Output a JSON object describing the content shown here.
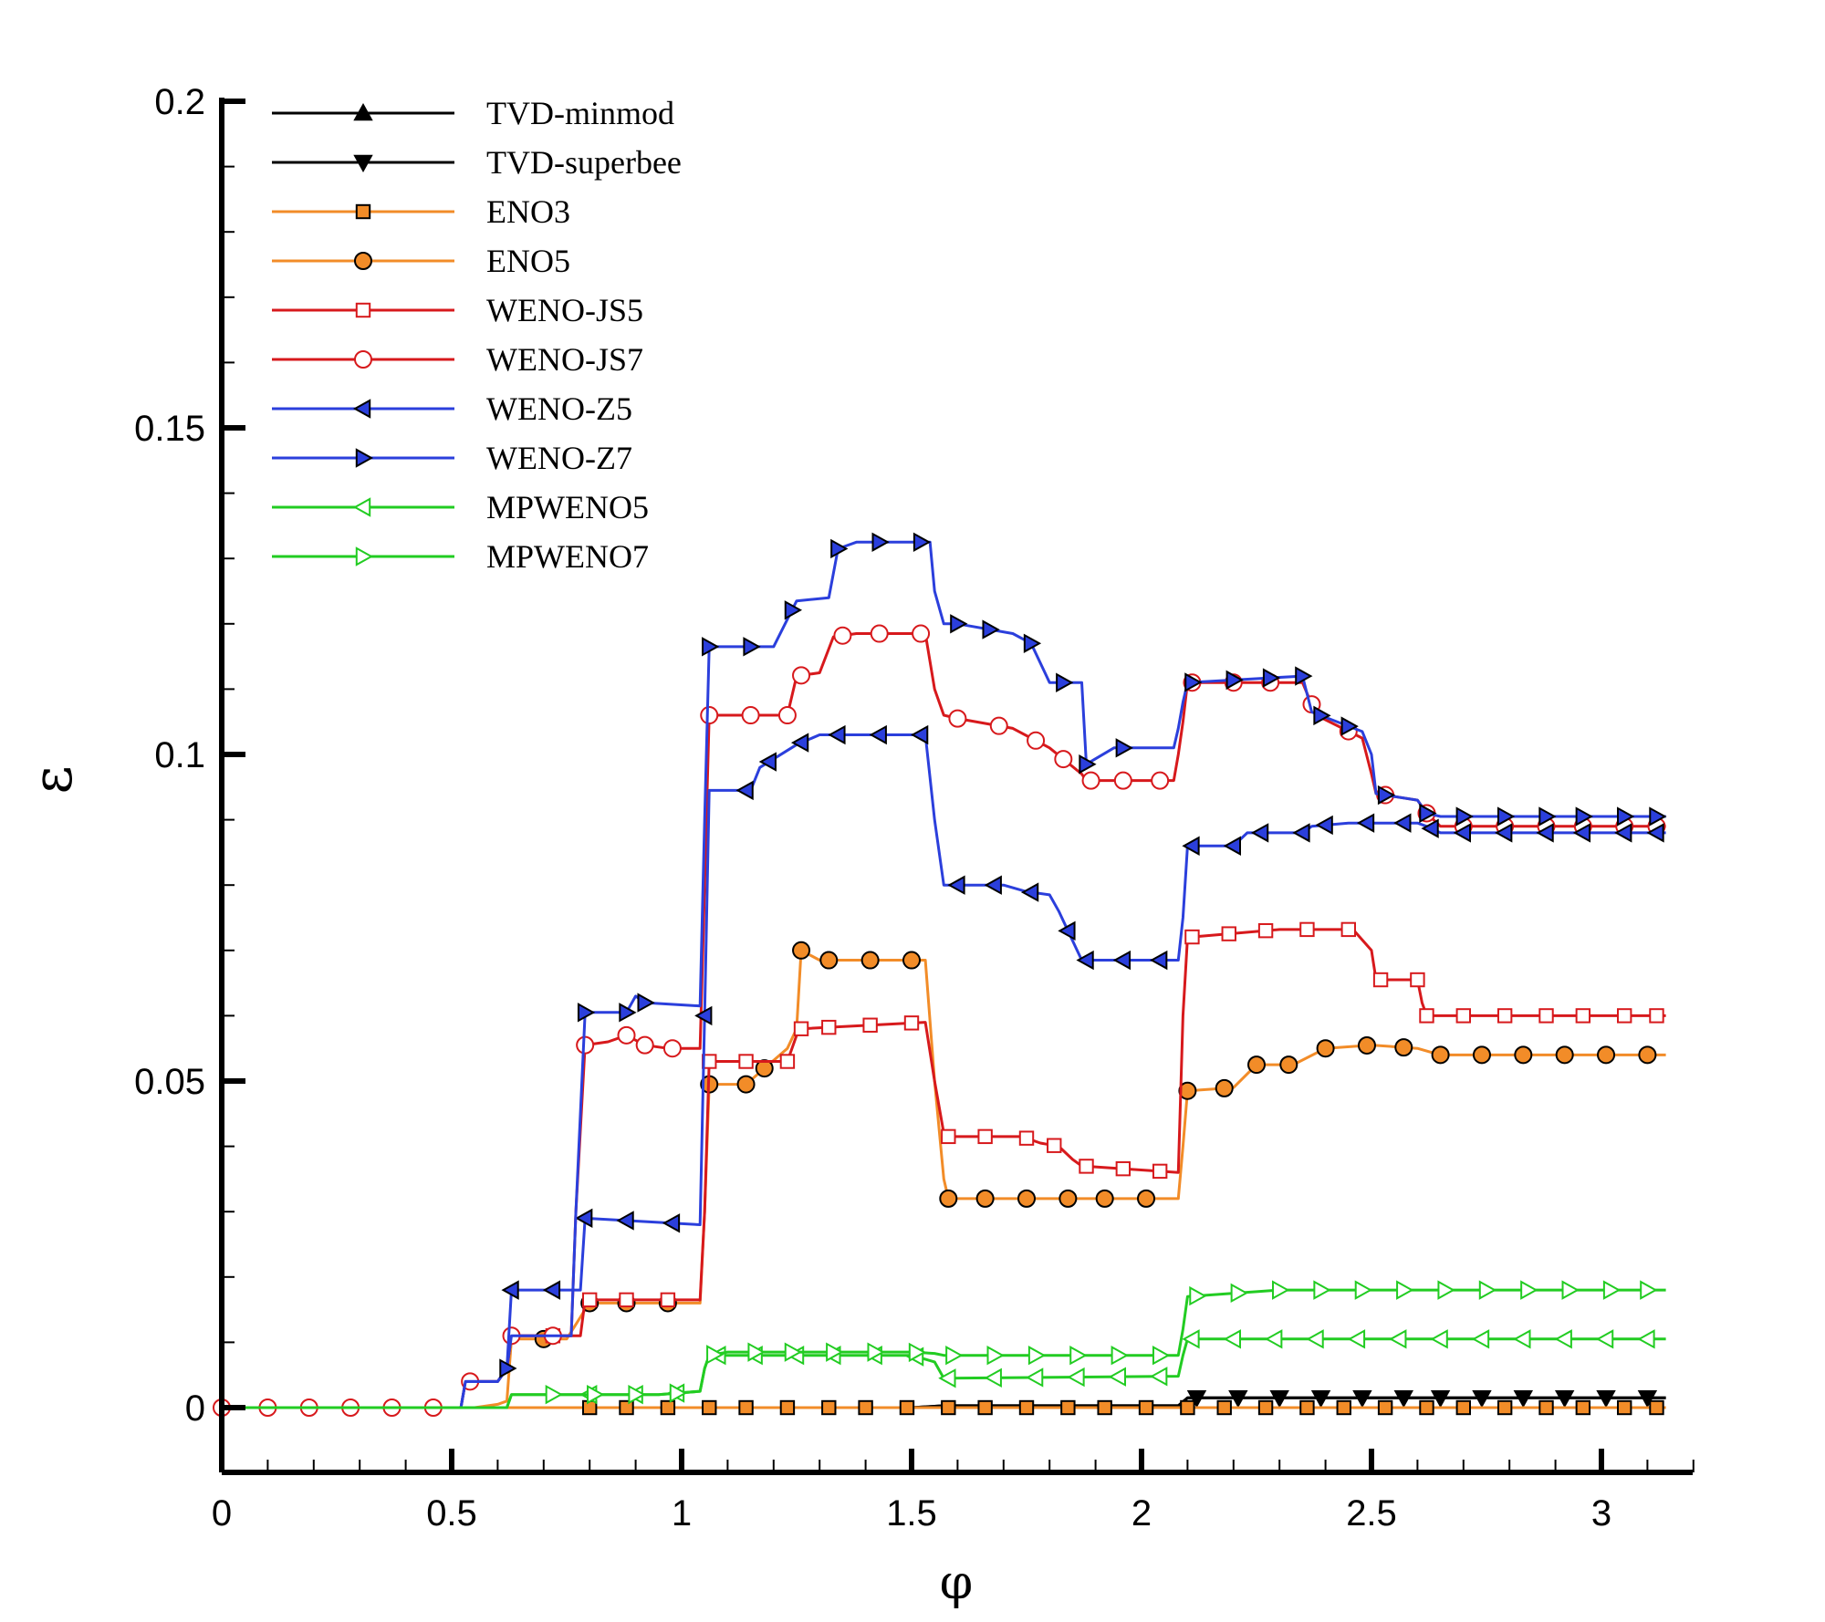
{
  "chart_data": {
    "type": "line",
    "title": "",
    "xlabel": "φ",
    "ylabel": "ε",
    "xlim": [
      0,
      3.2
    ],
    "ylim": [
      -0.01,
      0.2
    ],
    "xticks": [
      0,
      0.5,
      1,
      1.5,
      2,
      2.5,
      3
    ],
    "xtick_labels": [
      "0",
      "0.5",
      "1",
      "1.5",
      "2",
      "2.5",
      "3"
    ],
    "yticks": [
      0,
      0.05,
      0.1,
      0.15,
      0.2
    ],
    "ytick_labels": [
      "0",
      "0.05",
      "0.1",
      "0.15",
      "0.2"
    ],
    "grid": false,
    "legend_position": "top-left",
    "series": [
      {
        "name": "TVD-minmod",
        "color": "#000000",
        "marker": "triangle-up",
        "fill": "#000000",
        "x": [
          0,
          0.5,
          1.0,
          1.5,
          1.57,
          2.08,
          2.1,
          2.3,
          3.14
        ],
        "y": [
          0,
          0,
          0,
          0,
          0.0003,
          0.0003,
          0.0015,
          0.0015,
          0.0015
        ],
        "markers": []
      },
      {
        "name": "TVD-superbee",
        "color": "#000000",
        "marker": "triangle-down",
        "fill": "#000000",
        "x": [
          0,
          0.5,
          1.0,
          1.5,
          1.57,
          2.08,
          2.1,
          2.3,
          3.14
        ],
        "y": [
          0,
          0,
          0,
          0,
          0.0003,
          0.0003,
          0.0015,
          0.0015,
          0.0015
        ],
        "markers": [
          2.12,
          2.21,
          2.3,
          2.39,
          2.48,
          2.57,
          2.65,
          2.74,
          2.83,
          2.92,
          3.01,
          3.1
        ]
      },
      {
        "name": "ENO3",
        "color": "#f28c28",
        "marker": "square",
        "fill": "#f28c28",
        "x": [
          0,
          3.14
        ],
        "y": [
          0,
          0
        ],
        "markers": [
          0.8,
          0.88,
          0.97,
          1.06,
          1.14,
          1.23,
          1.32,
          1.4,
          1.49,
          1.58,
          1.66,
          1.75,
          1.84,
          1.92,
          2.01,
          2.1,
          2.18,
          2.27,
          2.36,
          2.44,
          2.53,
          2.62,
          2.7,
          2.79,
          2.88,
          2.96,
          3.05,
          3.12
        ]
      },
      {
        "name": "ENO5",
        "color": "#f28c28",
        "marker": "circle",
        "fill": "#f28c28",
        "x": [
          0,
          0.55,
          0.6,
          0.62,
          0.63,
          0.75,
          0.79,
          0.8,
          1.04,
          1.05,
          1.06,
          1.14,
          1.23,
          1.25,
          1.26,
          1.3,
          1.53,
          1.55,
          1.57,
          1.58,
          2.08,
          2.09,
          2.1,
          2.2,
          2.25,
          2.33,
          2.4,
          2.5,
          2.6,
          2.65,
          3.14
        ],
        "y": [
          0,
          0,
          0.0005,
          0.001,
          0.0105,
          0.0105,
          0.015,
          0.016,
          0.016,
          0.03,
          0.0495,
          0.0495,
          0.055,
          0.058,
          0.07,
          0.0685,
          0.0685,
          0.05,
          0.035,
          0.032,
          0.032,
          0.04,
          0.0485,
          0.049,
          0.0525,
          0.0525,
          0.055,
          0.0555,
          0.055,
          0.054,
          0.054
        ],
        "markers": [
          0.7,
          0.8,
          0.88,
          0.97,
          1.06,
          1.14,
          1.18,
          1.26,
          1.32,
          1.41,
          1.5,
          1.58,
          1.66,
          1.75,
          1.84,
          1.92,
          2.01,
          2.1,
          2.18,
          2.25,
          2.32,
          2.4,
          2.49,
          2.57,
          2.65,
          2.74,
          2.83,
          2.92,
          3.01,
          3.1
        ]
      },
      {
        "name": "WENO-JS5",
        "color": "#d7191c",
        "marker": "square",
        "fill": "#ffffff",
        "x": [
          0,
          0.52,
          0.53,
          0.6,
          0.62,
          0.63,
          0.78,
          0.79,
          1.04,
          1.05,
          1.06,
          1.23,
          1.25,
          1.26,
          1.53,
          1.55,
          1.57,
          1.58,
          1.74,
          1.78,
          1.82,
          1.85,
          1.87,
          2.08,
          2.09,
          2.1,
          2.3,
          2.46,
          2.5,
          2.51,
          2.6,
          2.61,
          2.62,
          3.14
        ],
        "y": [
          0,
          0,
          0.004,
          0.004,
          0.006,
          0.011,
          0.011,
          0.0165,
          0.0165,
          0.03,
          0.053,
          0.053,
          0.057,
          0.058,
          0.059,
          0.05,
          0.042,
          0.0415,
          0.0415,
          0.0405,
          0.04,
          0.038,
          0.037,
          0.036,
          0.06,
          0.072,
          0.0732,
          0.0732,
          0.07,
          0.0655,
          0.0655,
          0.062,
          0.06,
          0.06
        ],
        "markers": [
          0.72,
          0.8,
          0.88,
          0.97,
          1.06,
          1.14,
          1.23,
          1.26,
          1.32,
          1.41,
          1.5,
          1.58,
          1.66,
          1.75,
          1.81,
          1.88,
          1.96,
          2.04,
          2.11,
          2.19,
          2.27,
          2.36,
          2.45,
          2.52,
          2.6,
          2.62,
          2.7,
          2.79,
          2.88,
          2.96,
          3.05,
          3.12
        ]
      },
      {
        "name": "WENO-JS7",
        "color": "#d7191c",
        "marker": "circle",
        "fill": "#ffffff",
        "x": [
          0,
          0.52,
          0.53,
          0.6,
          0.62,
          0.63,
          0.76,
          0.77,
          0.79,
          0.84,
          0.88,
          0.92,
          0.97,
          1.04,
          1.05,
          1.06,
          1.23,
          1.25,
          1.3,
          1.33,
          1.38,
          1.53,
          1.55,
          1.57,
          1.6,
          1.72,
          1.8,
          1.87,
          1.88,
          2.07,
          2.08,
          2.09,
          2.1,
          2.35,
          2.38,
          2.48,
          2.5,
          2.51,
          2.6,
          2.62,
          2.65,
          3.14
        ],
        "y": [
          0,
          0,
          0.004,
          0.004,
          0.006,
          0.011,
          0.011,
          0.03,
          0.0555,
          0.056,
          0.057,
          0.0555,
          0.055,
          0.055,
          0.08,
          0.106,
          0.106,
          0.112,
          0.1125,
          0.118,
          0.1185,
          0.1185,
          0.11,
          0.106,
          0.1055,
          0.104,
          0.101,
          0.097,
          0.096,
          0.096,
          0.1,
          0.105,
          0.111,
          0.111,
          0.106,
          0.1025,
          0.097,
          0.094,
          0.093,
          0.091,
          0.089,
          0.089
        ],
        "markers": [
          0,
          0.1,
          0.19,
          0.28,
          0.37,
          0.46,
          0.54,
          0.63,
          0.72,
          0.79,
          0.88,
          0.92,
          0.98,
          1.06,
          1.15,
          1.23,
          1.26,
          1.35,
          1.43,
          1.52,
          1.6,
          1.69,
          1.77,
          1.83,
          1.89,
          1.96,
          2.04,
          2.11,
          2.2,
          2.28,
          2.37,
          2.45,
          2.53,
          2.62,
          2.7,
          2.79,
          2.88,
          2.96,
          3.05,
          3.12
        ]
      },
      {
        "name": "WENO-Z5",
        "color": "#2b3fdc",
        "marker": "triangle-left",
        "fill": "#2b3fdc",
        "x": [
          0,
          0.52,
          0.53,
          0.6,
          0.62,
          0.63,
          0.78,
          0.79,
          1.04,
          1.05,
          1.06,
          1.15,
          1.17,
          1.25,
          1.3,
          1.53,
          1.55,
          1.57,
          1.7,
          1.75,
          1.8,
          1.82,
          1.86,
          1.87,
          2.08,
          2.09,
          2.1,
          2.2,
          2.23,
          2.35,
          2.37,
          2.45,
          2.6,
          2.62,
          2.65,
          3.14
        ],
        "y": [
          0,
          0,
          0.004,
          0.004,
          0.006,
          0.018,
          0.018,
          0.029,
          0.028,
          0.06,
          0.0945,
          0.0945,
          0.098,
          0.1015,
          0.103,
          0.103,
          0.09,
          0.08,
          0.08,
          0.079,
          0.0785,
          0.076,
          0.07,
          0.0685,
          0.0685,
          0.075,
          0.086,
          0.086,
          0.088,
          0.088,
          0.089,
          0.0895,
          0.0895,
          0.089,
          0.088,
          0.088
        ],
        "markers": [
          0.63,
          0.72,
          0.79,
          0.88,
          0.98,
          1.05,
          1.14,
          1.19,
          1.26,
          1.34,
          1.43,
          1.52,
          1.6,
          1.68,
          1.76,
          1.84,
          1.88,
          1.96,
          2.04,
          2.11,
          2.2,
          2.26,
          2.35,
          2.4,
          2.49,
          2.57,
          2.63,
          2.7,
          2.79,
          2.88,
          2.96,
          3.05,
          3.12
        ]
      },
      {
        "name": "WENO-Z7",
        "color": "#2b3fdc",
        "marker": "triangle-right",
        "fill": "#2b3fdc",
        "x": [
          0,
          0.52,
          0.53,
          0.6,
          0.62,
          0.63,
          0.76,
          0.77,
          0.79,
          0.88,
          0.9,
          0.92,
          1.04,
          1.05,
          1.06,
          1.2,
          1.25,
          1.32,
          1.34,
          1.38,
          1.54,
          1.55,
          1.57,
          1.6,
          1.72,
          1.76,
          1.8,
          1.87,
          1.88,
          1.94,
          2.07,
          2.08,
          2.09,
          2.1,
          2.35,
          2.37,
          2.48,
          2.5,
          2.51,
          2.6,
          2.62,
          2.65,
          3.14
        ],
        "y": [
          0,
          0,
          0.004,
          0.004,
          0.006,
          0.011,
          0.011,
          0.03,
          0.0605,
          0.0605,
          0.063,
          0.062,
          0.0615,
          0.09,
          0.1165,
          0.1165,
          0.1235,
          0.124,
          0.1315,
          0.1325,
          0.1325,
          0.125,
          0.12,
          0.12,
          0.1185,
          0.117,
          0.111,
          0.111,
          0.0985,
          0.101,
          0.101,
          0.104,
          0.108,
          0.111,
          0.112,
          0.1065,
          0.1035,
          0.1,
          0.094,
          0.093,
          0.091,
          0.0905,
          0.0905
        ],
        "markers": [
          0.62,
          0.79,
          0.88,
          0.92,
          1.06,
          1.15,
          1.24,
          1.34,
          1.43,
          1.52,
          1.6,
          1.67,
          1.76,
          1.83,
          1.88,
          1.96,
          2.11,
          2.2,
          2.28,
          2.35,
          2.39,
          2.45,
          2.53,
          2.62,
          2.7,
          2.79,
          2.88,
          2.96,
          3.05,
          3.12
        ]
      },
      {
        "name": "MPWENO5",
        "color": "#22cc22",
        "marker": "triangle-left",
        "fill": "#ffffff",
        "x": [
          0,
          0.62,
          0.63,
          0.95,
          1.04,
          1.05,
          1.06,
          1.1,
          1.5,
          1.55,
          1.57,
          1.58,
          2.08,
          2.09,
          2.1,
          3.14
        ],
        "y": [
          0,
          0,
          0.002,
          0.002,
          0.0025,
          0.006,
          0.008,
          0.008,
          0.008,
          0.007,
          0.0045,
          0.0045,
          0.0048,
          0.008,
          0.0105,
          0.0105
        ],
        "markers": [
          0.8,
          0.9,
          0.99,
          1.08,
          1.16,
          1.25,
          1.33,
          1.42,
          1.51,
          1.58,
          1.68,
          1.77,
          1.86,
          1.95,
          2.04,
          2.11,
          2.2,
          2.29,
          2.38,
          2.47,
          2.56,
          2.65,
          2.74,
          2.83,
          2.92,
          3.01,
          3.1
        ]
      },
      {
        "name": "MPWENO7",
        "color": "#22cc22",
        "marker": "triangle-right",
        "fill": "#ffffff",
        "x": [
          0,
          0.62,
          0.63,
          0.95,
          1.04,
          1.05,
          1.06,
          1.1,
          1.5,
          1.55,
          1.57,
          1.58,
          2.08,
          2.09,
          2.1,
          2.3,
          3.14
        ],
        "y": [
          0,
          0,
          0.002,
          0.002,
          0.0025,
          0.006,
          0.008,
          0.0085,
          0.0085,
          0.0083,
          0.008,
          0.008,
          0.008,
          0.012,
          0.017,
          0.018,
          0.018
        ],
        "markers": [
          0.72,
          0.81,
          0.9,
          0.99,
          1.07,
          1.16,
          1.24,
          1.33,
          1.42,
          1.51,
          1.59,
          1.68,
          1.77,
          1.86,
          1.95,
          2.04,
          2.12,
          2.21,
          2.3,
          2.39,
          2.48,
          2.57,
          2.66,
          2.75,
          2.84,
          2.93,
          3.02,
          3.1
        ]
      }
    ]
  }
}
